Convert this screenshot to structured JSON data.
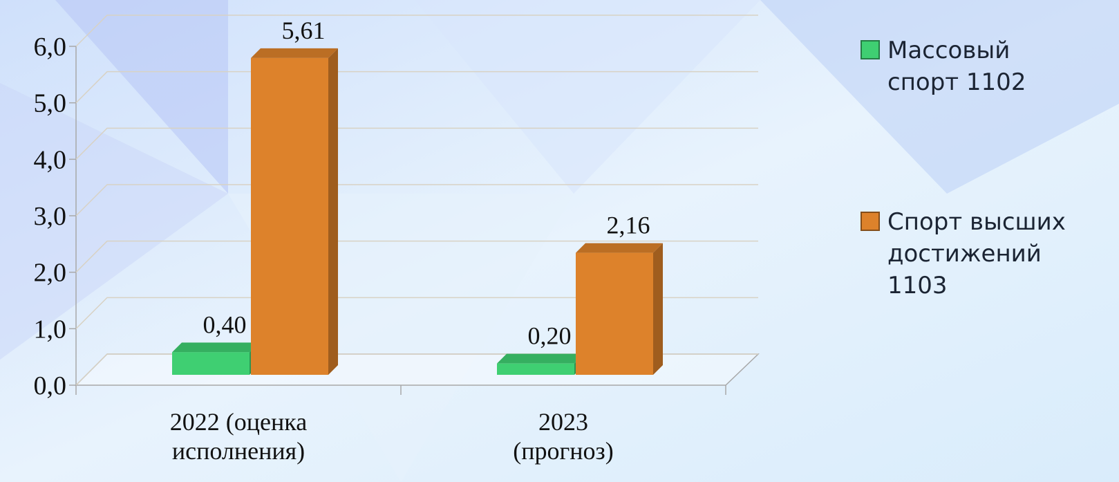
{
  "chart_data": {
    "type": "bar3d",
    "categories": [
      "2022 (оценка исполнения)",
      "2023 (прогноз)"
    ],
    "series": [
      {
        "name": "Массовый спорт 1102",
        "color": "#3fcf72",
        "values": [
          0.4,
          0.2
        ],
        "value_labels": [
          "0,40",
          "0,20"
        ]
      },
      {
        "name": "Спорт высших достижений 1103",
        "color": "#dd822b",
        "values": [
          5.61,
          2.16
        ],
        "value_labels": [
          "5,61",
          "2,16"
        ]
      }
    ],
    "ylim": [
      0,
      6
    ],
    "yticks": [
      {
        "value": 0,
        "label": "0,0"
      },
      {
        "value": 1,
        "label": "1,0"
      },
      {
        "value": 2,
        "label": "2,0"
      },
      {
        "value": 3,
        "label": "3,0"
      },
      {
        "value": 4,
        "label": "4,0"
      },
      {
        "value": 5,
        "label": "5,0"
      },
      {
        "value": 6,
        "label": "6,0"
      }
    ],
    "grid": true,
    "legend": "right"
  }
}
